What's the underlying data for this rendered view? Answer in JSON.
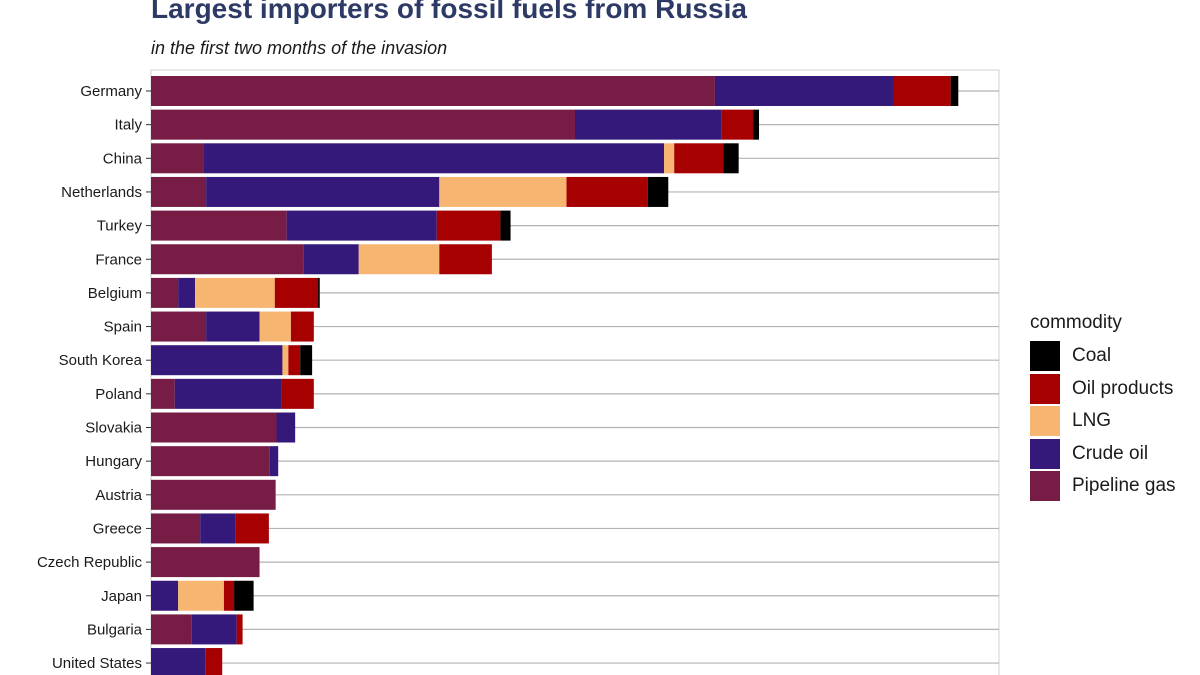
{
  "chart_data": {
    "type": "bar",
    "orientation": "horizontal",
    "stacked": true,
    "title": "Largest importers of fossil fuels from Russia",
    "subtitle": "in the first two months of the invasion",
    "xlabel": "",
    "ylabel": "",
    "xlim": [
      0,
      100
    ],
    "grid": true,
    "legend_position": "right",
    "legend_title": "commodity",
    "legend_order": [
      "Coal",
      "Oil products",
      "LNG",
      "Crude oil",
      "Pipeline gas"
    ],
    "categories": [
      "Germany",
      "Italy",
      "China",
      "Netherlands",
      "Turkey",
      "France",
      "Belgium",
      "Spain",
      "South Korea",
      "Poland",
      "Slovakia",
      "Hungary",
      "Austria",
      "Greece",
      "Czech Republic",
      "Japan",
      "Bulgaria",
      "United States"
    ],
    "series": [
      {
        "name": "Pipeline gas",
        "color": "#761c45",
        "values": [
          66.5,
          50,
          6.2,
          6.5,
          16,
          18,
          3.2,
          6.5,
          0,
          2.8,
          14.8,
          14,
          14.7,
          5.8,
          12.8,
          0,
          4.8,
          0
        ]
      },
      {
        "name": "Crude oil",
        "color": "#35197a",
        "values": [
          21,
          17.3,
          54.3,
          27.5,
          17.7,
          6.5,
          2,
          6.3,
          15.5,
          12.6,
          2.2,
          1,
          0,
          4.2,
          0,
          3.2,
          5.3,
          6.4
        ]
      },
      {
        "name": "LNG",
        "color": "#f7b572",
        "values": [
          0,
          0,
          1.2,
          15,
          0,
          9.5,
          9.4,
          3.7,
          0.7,
          0,
          0,
          0,
          0,
          0,
          0,
          5.4,
          0,
          0
        ]
      },
      {
        "name": "Oil products",
        "color": "#a60000",
        "values": [
          6.8,
          3.7,
          5.8,
          9.6,
          7.5,
          6.2,
          5.1,
          2.7,
          1.4,
          3.8,
          0,
          0,
          0,
          3.9,
          0,
          1.2,
          0.7,
          2
        ]
      },
      {
        "name": "Coal",
        "color": "#000000",
        "values": [
          0.9,
          0.7,
          1.8,
          2.4,
          1.2,
          0,
          0.2,
          0,
          1.4,
          0,
          0,
          0,
          0,
          0,
          0,
          2.3,
          0,
          0
        ]
      }
    ]
  }
}
